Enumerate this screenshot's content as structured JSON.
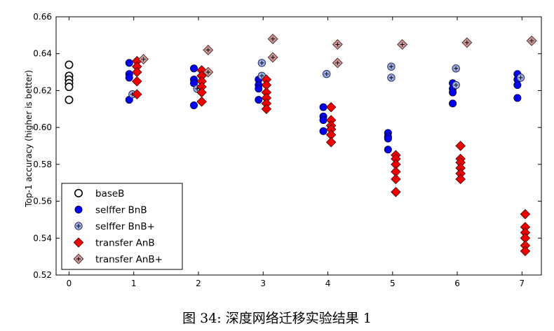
{
  "caption": "图 34: 深度网络迁移实验结果 1",
  "chart_data": {
    "type": "scatter",
    "ylabel": "Top-1 accuracy (higher is better)",
    "xlim": [
      -0.2,
      7.3
    ],
    "ylim": [
      0.52,
      0.66
    ],
    "xticks": [
      "0",
      "1",
      "2",
      "3",
      "4",
      "5",
      "6",
      "7"
    ],
    "yticks": [
      "0.52",
      "0.54",
      "0.56",
      "0.58",
      "0.60",
      "0.62",
      "0.64",
      "0.66"
    ],
    "legend_position": "lower-left",
    "series": [
      {
        "name": "baseB",
        "marker": "open-circle",
        "color": "#000000",
        "points": [
          [
            0,
            0.634
          ],
          [
            0,
            0.628
          ],
          [
            0,
            0.626
          ],
          [
            0,
            0.624
          ],
          [
            0,
            0.622
          ],
          [
            0,
            0.615
          ]
        ]
      },
      {
        "name": "selffer BnB",
        "marker": "circle",
        "color": "#0000ee",
        "points": [
          [
            0.93,
            0.635
          ],
          [
            0.93,
            0.629
          ],
          [
            0.93,
            0.627
          ],
          [
            0.93,
            0.615
          ],
          [
            1.93,
            0.632
          ],
          [
            1.93,
            0.626
          ],
          [
            1.93,
            0.624
          ],
          [
            1.93,
            0.612
          ],
          [
            2.93,
            0.626
          ],
          [
            2.93,
            0.623
          ],
          [
            2.93,
            0.621
          ],
          [
            2.93,
            0.615
          ],
          [
            3.93,
            0.611
          ],
          [
            3.93,
            0.606
          ],
          [
            3.93,
            0.604
          ],
          [
            3.93,
            0.598
          ],
          [
            4.93,
            0.597
          ],
          [
            4.93,
            0.595
          ],
          [
            4.93,
            0.594
          ],
          [
            4.93,
            0.588
          ],
          [
            5.93,
            0.624
          ],
          [
            5.93,
            0.621
          ],
          [
            5.93,
            0.619
          ],
          [
            5.93,
            0.613
          ],
          [
            6.93,
            0.629
          ],
          [
            6.93,
            0.626
          ],
          [
            6.93,
            0.623
          ],
          [
            6.93,
            0.616
          ]
        ]
      },
      {
        "name": "selffer BnB+",
        "marker": "plus-circle",
        "color": "#9db0e6",
        "points": [
          [
            0.98,
            0.618
          ],
          [
            1.98,
            0.621
          ],
          [
            2.98,
            0.635
          ],
          [
            2.98,
            0.628
          ],
          [
            3.98,
            0.629
          ],
          [
            4.98,
            0.633
          ],
          [
            4.98,
            0.627
          ],
          [
            5.98,
            0.632
          ],
          [
            5.98,
            0.623
          ],
          [
            6.98,
            0.627
          ]
        ]
      },
      {
        "name": "transfer AnB",
        "marker": "diamond",
        "color": "#ee0000",
        "points": [
          [
            1.05,
            0.636
          ],
          [
            1.05,
            0.633
          ],
          [
            1.05,
            0.63
          ],
          [
            1.05,
            0.625
          ],
          [
            1.05,
            0.618
          ],
          [
            2.05,
            0.631
          ],
          [
            2.05,
            0.628
          ],
          [
            2.05,
            0.625
          ],
          [
            2.05,
            0.622
          ],
          [
            2.05,
            0.619
          ],
          [
            2.05,
            0.614
          ],
          [
            3.05,
            0.626
          ],
          [
            3.05,
            0.623
          ],
          [
            3.05,
            0.619
          ],
          [
            3.05,
            0.616
          ],
          [
            3.05,
            0.613
          ],
          [
            3.05,
            0.61
          ],
          [
            4.05,
            0.611
          ],
          [
            4.05,
            0.604
          ],
          [
            4.05,
            0.601
          ],
          [
            4.05,
            0.599
          ],
          [
            4.05,
            0.596
          ],
          [
            4.05,
            0.592
          ],
          [
            5.05,
            0.585
          ],
          [
            5.05,
            0.583
          ],
          [
            5.05,
            0.58
          ],
          [
            5.05,
            0.576
          ],
          [
            5.05,
            0.572
          ],
          [
            5.05,
            0.565
          ],
          [
            6.05,
            0.59
          ],
          [
            6.05,
            0.583
          ],
          [
            6.05,
            0.581
          ],
          [
            6.05,
            0.578
          ],
          [
            6.05,
            0.575
          ],
          [
            6.05,
            0.572
          ],
          [
            7.05,
            0.553
          ],
          [
            7.05,
            0.546
          ],
          [
            7.05,
            0.543
          ],
          [
            7.05,
            0.54
          ],
          [
            7.05,
            0.536
          ],
          [
            7.05,
            0.533
          ]
        ]
      },
      {
        "name": "transfer AnB+",
        "marker": "plus-diamond",
        "color": "#cc9999",
        "points": [
          [
            1.15,
            0.637
          ],
          [
            2.15,
            0.642
          ],
          [
            2.15,
            0.63
          ],
          [
            3.15,
            0.648
          ],
          [
            3.15,
            0.638
          ],
          [
            4.15,
            0.645
          ],
          [
            4.15,
            0.635
          ],
          [
            5.15,
            0.645
          ],
          [
            6.15,
            0.646
          ],
          [
            7.15,
            0.647
          ]
        ]
      }
    ]
  }
}
